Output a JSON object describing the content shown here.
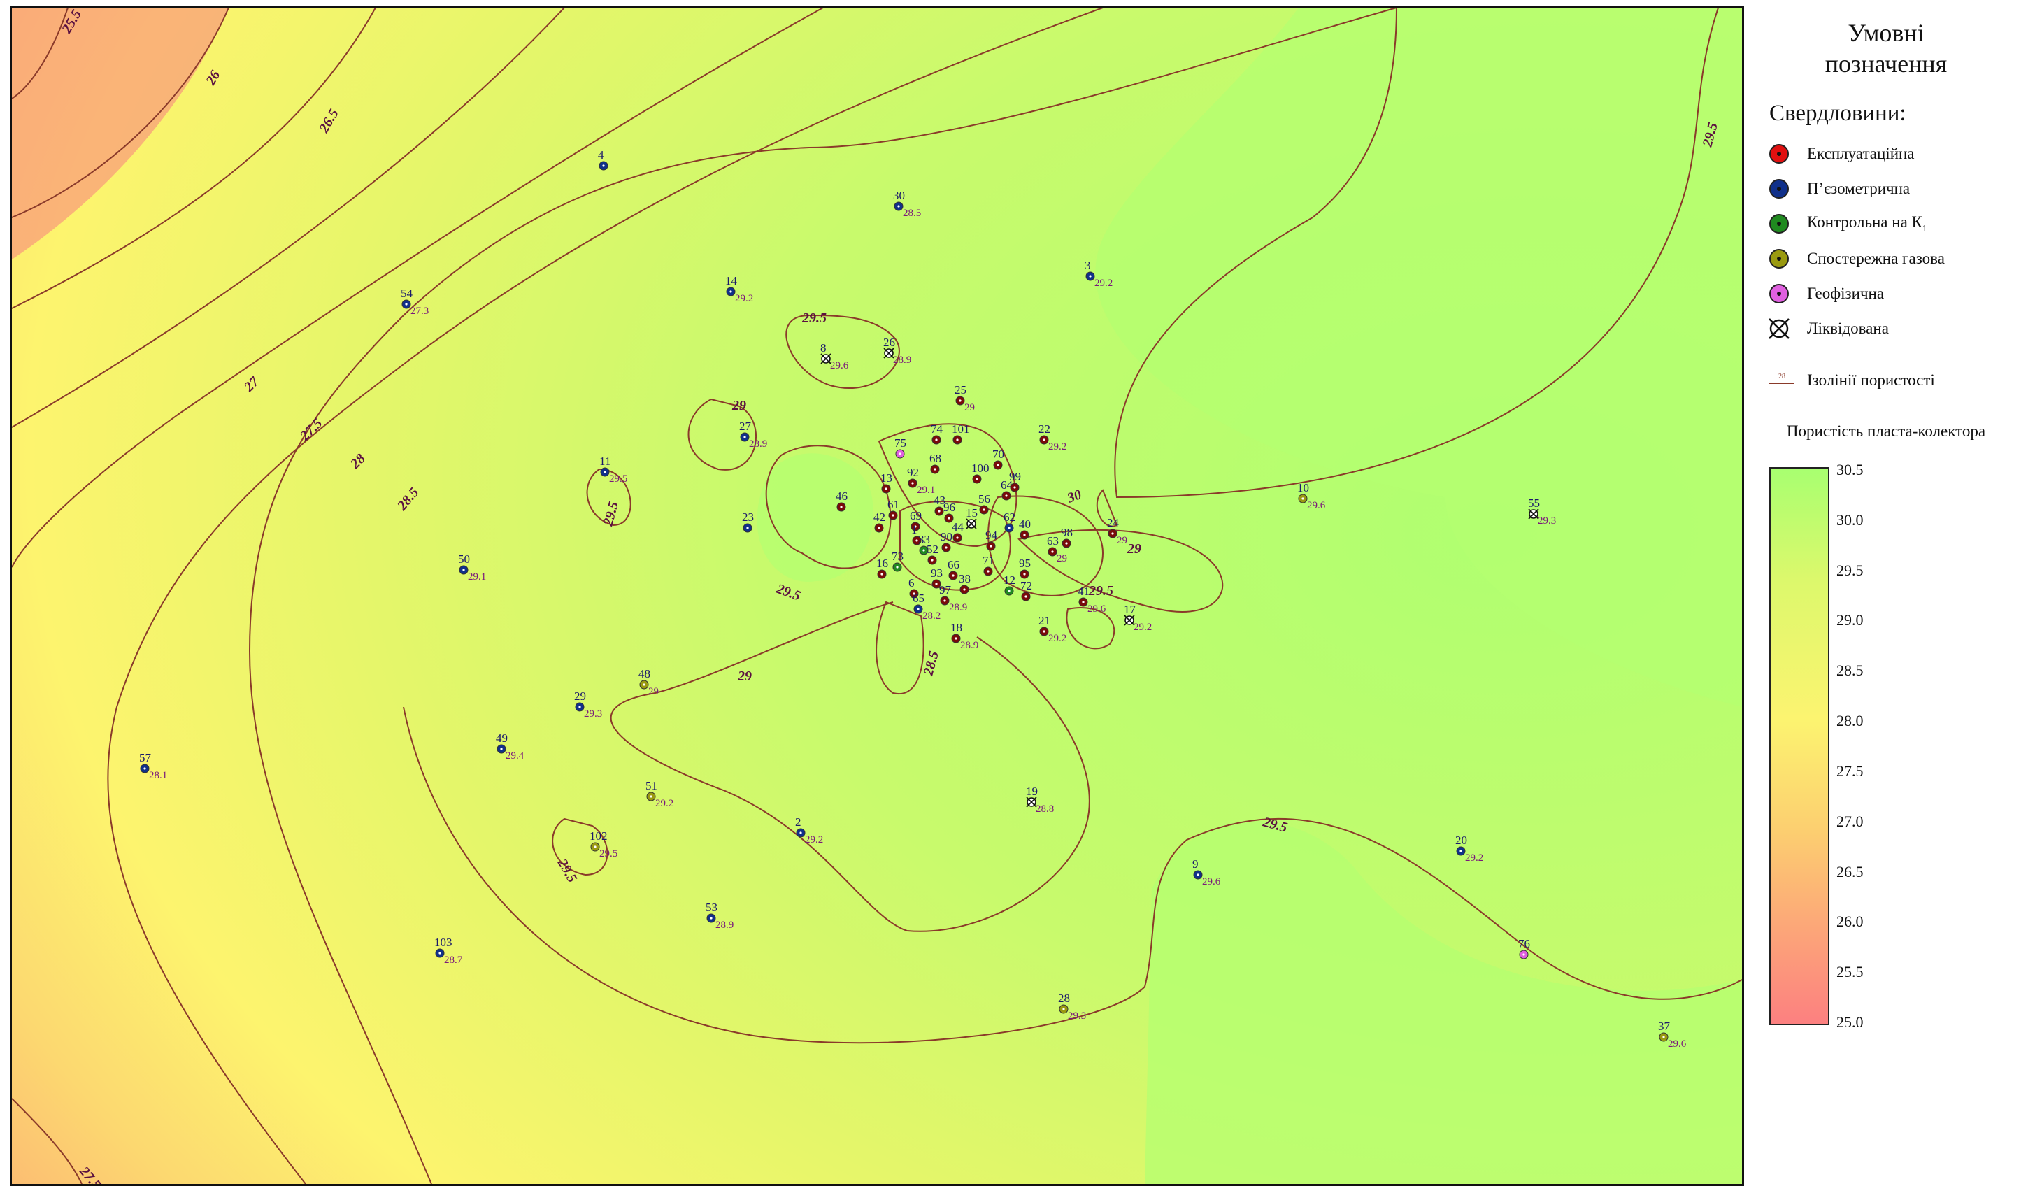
{
  "legend": {
    "title_line1": "Умовні",
    "title_line2": "позначення",
    "wells_heading": "Свердловини:",
    "well_types": [
      {
        "label": "Експлуатаційна",
        "color": "#e01010",
        "icon": "red-well-icon"
      },
      {
        "label": "П’єзометрична",
        "color": "#10308a",
        "icon": "blue-well-icon"
      },
      {
        "label": "Контрольна на К",
        "sub": "1",
        "color": "#208a20",
        "icon": "green-well-icon"
      },
      {
        "label": "Спостережна газова",
        "color": "#9a9a10",
        "icon": "olive-well-icon"
      },
      {
        "label": "Геофізична",
        "color": "#e060e0",
        "icon": "pink-well-icon"
      },
      {
        "label": "Ліквідована",
        "color": "#111111",
        "icon": "cross-circle-icon"
      }
    ],
    "isoline_sample": "28",
    "isoline_label": "Ізолінії пористості",
    "scale_title": "Пористість пласта-колектора",
    "scale_ticks": [
      "30.5",
      "30.0",
      "29.5",
      "29.0",
      "28.5",
      "28.0",
      "27.5",
      "27.0",
      "26.5",
      "26.0",
      "25.5",
      "25.0"
    ]
  },
  "isoline_labels": [
    "25.5",
    "26",
    "26.5",
    "27",
    "27.5",
    "28",
    "28.5",
    "29.5",
    "29.5",
    "29.5",
    "29",
    "29.5",
    "29.5",
    "29",
    "28.5",
    "30",
    "29",
    "29.5",
    "29.5",
    "27.5"
  ],
  "wells": [
    {
      "num": "4",
      "val": "",
      "type": "blue"
    },
    {
      "num": "30",
      "val": "28.5",
      "type": "blue"
    },
    {
      "num": "3",
      "val": "29.2",
      "type": "blue"
    },
    {
      "num": "14",
      "val": "29.2",
      "type": "blue"
    },
    {
      "num": "54",
      "val": "27.3",
      "type": "blue"
    },
    {
      "num": "8",
      "val": "29.6",
      "type": "liq"
    },
    {
      "num": "26",
      "val": "28.9",
      "type": "liq"
    },
    {
      "num": "27",
      "val": "28.9",
      "type": "blue"
    },
    {
      "num": "25",
      "val": "29",
      "type": "red"
    },
    {
      "num": "22",
      "val": "29.2",
      "type": "red"
    },
    {
      "num": "11",
      "val": "29.5",
      "type": "blue"
    },
    {
      "num": "10",
      "val": "29.6",
      "type": "olive"
    },
    {
      "num": "55",
      "val": "29.3",
      "type": "liq"
    },
    {
      "num": "23",
      "val": "",
      "type": "blue"
    },
    {
      "num": "50",
      "val": "29.1",
      "type": "blue"
    },
    {
      "num": "17",
      "val": "29.2",
      "type": "liq"
    },
    {
      "num": "41",
      "val": "29.6",
      "type": "red"
    },
    {
      "num": "21",
      "val": "29.2",
      "type": "red"
    },
    {
      "num": "18",
      "val": "28.9",
      "type": "red"
    },
    {
      "num": "48",
      "val": "29",
      "type": "olive"
    },
    {
      "num": "29",
      "val": "29.3",
      "type": "blue"
    },
    {
      "num": "49",
      "val": "29.4",
      "type": "blue"
    },
    {
      "num": "57",
      "val": "28.1",
      "type": "blue"
    },
    {
      "num": "51",
      "val": "29.2",
      "type": "olive"
    },
    {
      "num": "2",
      "val": "29.2",
      "type": "blue"
    },
    {
      "num": "19",
      "val": "28.8",
      "type": "liq"
    },
    {
      "num": "102",
      "val": "29.5",
      "type": "olive"
    },
    {
      "num": "20",
      "val": "29.2",
      "type": "blue"
    },
    {
      "num": "9",
      "val": "29.6",
      "type": "blue"
    },
    {
      "num": "53",
      "val": "28.9",
      "type": "blue"
    },
    {
      "num": "103",
      "val": "28.7",
      "type": "blue"
    },
    {
      "num": "76",
      "val": "",
      "type": "pink"
    },
    {
      "num": "28",
      "val": "29.3",
      "type": "olive"
    },
    {
      "num": "37",
      "val": "29.6",
      "type": "olive"
    },
    {
      "num": "75",
      "val": "",
      "type": "pink"
    },
    {
      "num": "74",
      "val": "",
      "type": "red"
    },
    {
      "num": "101",
      "val": "",
      "type": "red"
    },
    {
      "num": "92",
      "val": "29.1",
      "type": "red"
    },
    {
      "num": "68",
      "val": "",
      "type": "red"
    },
    {
      "num": "70",
      "val": "",
      "type": "red"
    },
    {
      "num": "100",
      "val": "",
      "type": "red"
    },
    {
      "num": "13",
      "val": "",
      "type": "red"
    },
    {
      "num": "46",
      "val": "",
      "type": "red"
    },
    {
      "num": "61",
      "val": "",
      "type": "red"
    },
    {
      "num": "43",
      "val": "",
      "type": "red"
    },
    {
      "num": "56",
      "val": "",
      "type": "red"
    },
    {
      "num": "64",
      "val": "",
      "type": "red"
    },
    {
      "num": "99",
      "val": "",
      "type": "red"
    },
    {
      "num": "42",
      "val": "",
      "type": "red"
    },
    {
      "num": "69",
      "val": "",
      "type": "red"
    },
    {
      "num": "96",
      "val": "",
      "type": "red"
    },
    {
      "num": "15",
      "val": "",
      "type": "liq"
    },
    {
      "num": "62",
      "val": "",
      "type": "blue"
    },
    {
      "num": "40",
      "val": "",
      "type": "red"
    },
    {
      "num": "98",
      "val": "",
      "type": "red"
    },
    {
      "num": "24",
      "val": "29",
      "type": "red"
    },
    {
      "num": "1",
      "val": "",
      "type": "red"
    },
    {
      "num": "44",
      "val": "",
      "type": "red"
    },
    {
      "num": "33",
      "val": "",
      "type": "green"
    },
    {
      "num": "90",
      "val": "",
      "type": "red"
    },
    {
      "num": "94",
      "val": "",
      "type": "red"
    },
    {
      "num": "63",
      "val": "29",
      "type": "red"
    },
    {
      "num": "52",
      "val": "",
      "type": "red"
    },
    {
      "num": "16",
      "val": "",
      "type": "red"
    },
    {
      "num": "73",
      "val": "",
      "type": "green"
    },
    {
      "num": "66",
      "val": "",
      "type": "red"
    },
    {
      "num": "71",
      "val": "",
      "type": "red"
    },
    {
      "num": "93",
      "val": "",
      "type": "red"
    },
    {
      "num": "38",
      "val": "",
      "type": "red"
    },
    {
      "num": "95",
      "val": "",
      "type": "red"
    },
    {
      "num": "6",
      "val": "",
      "type": "red"
    },
    {
      "num": "97",
      "val": "28.9",
      "type": "red"
    },
    {
      "num": "12",
      "val": "",
      "type": "green"
    },
    {
      "num": "72",
      "val": "",
      "type": "red"
    },
    {
      "num": "65",
      "val": "28.2",
      "type": "blue"
    }
  ]
}
